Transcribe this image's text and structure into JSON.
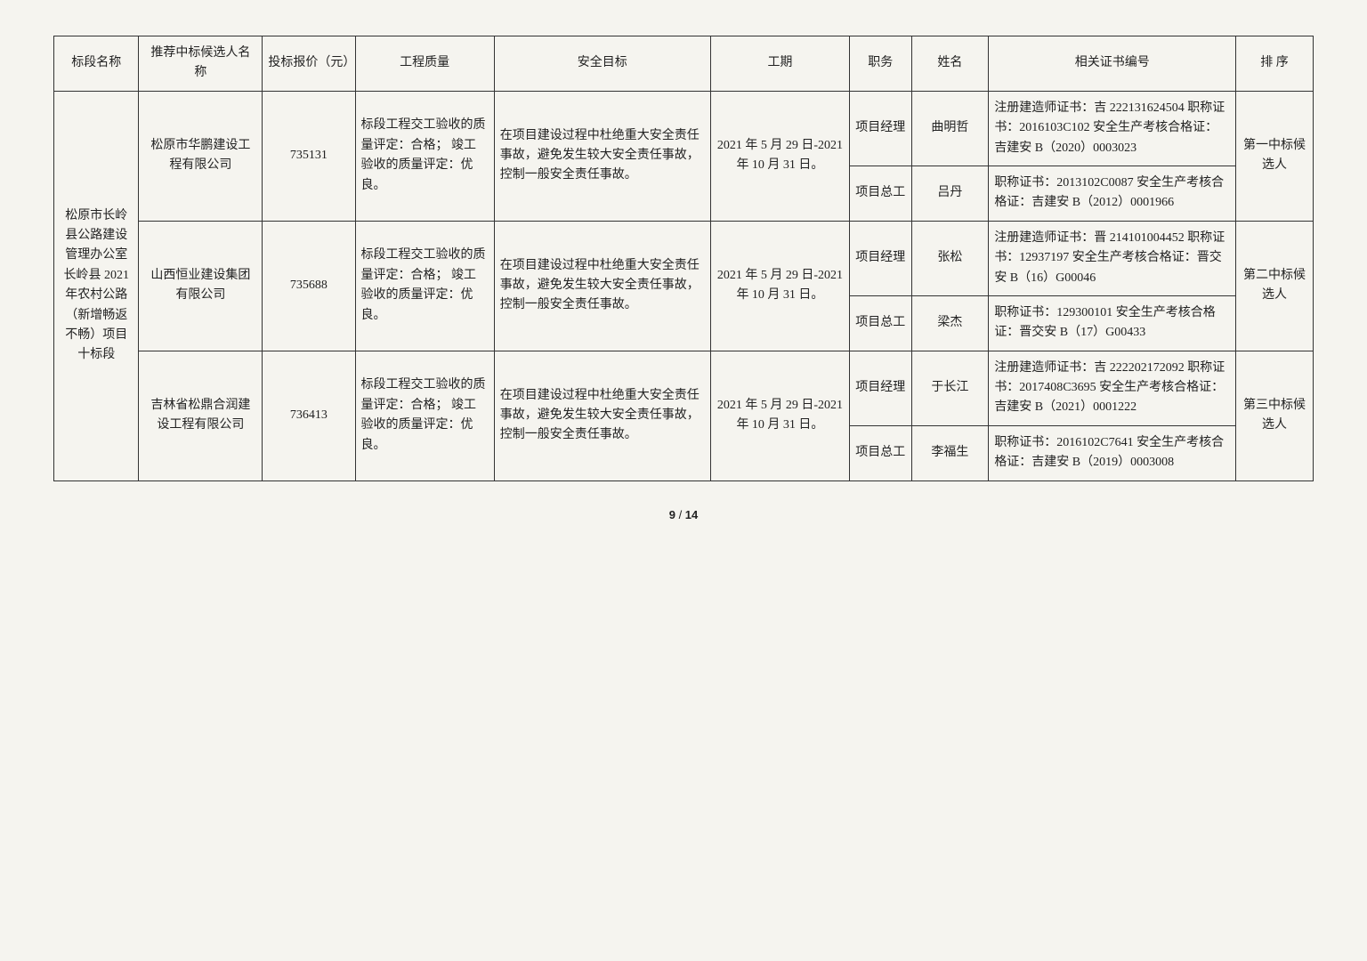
{
  "headers": {
    "section": "标段名称",
    "bidder": "推荐中标候选人名称",
    "price": "投标报价（元）",
    "quality": "工程质量",
    "safety": "安全目标",
    "period": "工期",
    "role": "职务",
    "name": "姓名",
    "cert": "相关证书编号",
    "rank": "排 序"
  },
  "section_name": "松原市长岭县公路建设管理办公室长岭县 2021 年农村公路（新增畅返不畅）项目十标段",
  "quality_text": "标段工程交工验收的质量评定：合格；\n竣工验收的质量评定：优良。",
  "safety_text": "在项目建设过程中杜绝重大安全责任事故，避免发生较大安全责任事故，控制一般安全责任事故。",
  "period_text": "2021 年 5 月 29 日-2021 年 10 月 31 日。",
  "bidders": [
    {
      "company": "松原市华鹏建设工程有限公司",
      "price": "735131",
      "rank": "第一中标候选人",
      "people": [
        {
          "role": "项目经理",
          "name": "曲明哲",
          "cert": "注册建造师证书：吉 222131624504\n职称证书：2016103C102\n安全生产考核合格证：吉建安 B（2020）0003023"
        },
        {
          "role": "项目总工",
          "name": "吕丹",
          "cert": "职称证书：2013102C0087\n安全生产考核合格证：吉建安 B（2012）0001966"
        }
      ]
    },
    {
      "company": "山西恒业建设集团有限公司",
      "price": "735688",
      "rank": "第二中标候选人",
      "people": [
        {
          "role": "项目经理",
          "name": "张松",
          "cert": "注册建造师证书：晋 214101004452\n职称证书：12937197\n安全生产考核合格证：晋交安 B（16）G00046"
        },
        {
          "role": "项目总工",
          "name": "梁杰",
          "cert": "职称证书：129300101\n安全生产考核合格证：晋交安 B（17）G00433"
        }
      ]
    },
    {
      "company": "吉林省松鼎合润建设工程有限公司",
      "price": "736413",
      "rank": "第三中标候选人",
      "people": [
        {
          "role": "项目经理",
          "name": "于长江",
          "cert": "注册建造师证书：吉 222202172092\n职称证书：2017408C3695\n安全生产考核合格证：吉建安 B（2021）0001222"
        },
        {
          "role": "项目总工",
          "name": "李福生",
          "cert": "职称证书：2016102C7641\n安全生产考核合格证：吉建安 B（2019）0003008"
        }
      ]
    }
  ],
  "page": {
    "current": "9",
    "sep": " / ",
    "total": "14"
  }
}
